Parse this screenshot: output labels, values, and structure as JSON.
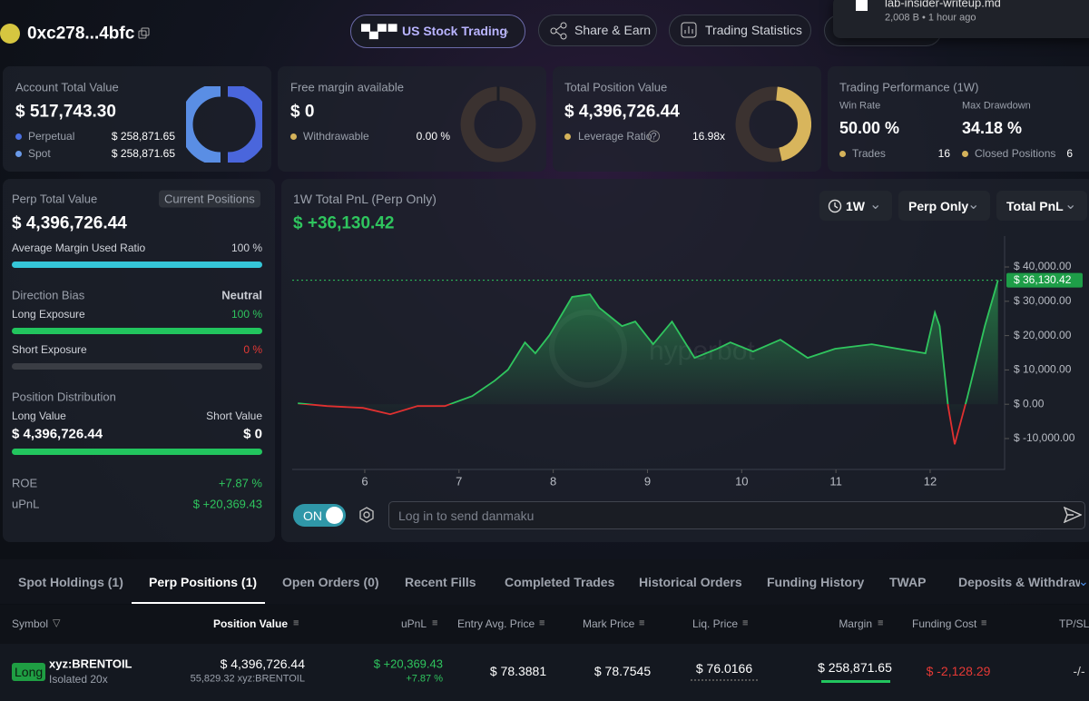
{
  "header": {
    "address": "0xc278...4bfc",
    "buttons": [
      "US Stock Trading",
      "Share & Earn",
      "Trading Statistics"
    ]
  },
  "notification": {
    "filename": "lab-insider-writeup.md",
    "meta": "2,008 B • 1 hour ago"
  },
  "cards": [
    {
      "title": "Account Total Value",
      "value": "$ 517,743.30",
      "rows": [
        {
          "label": "Perpetual",
          "value": "$ 258,871.65"
        },
        {
          "label": "Spot",
          "value": "$ 258,871.65"
        }
      ]
    },
    {
      "title": "Free margin available",
      "value": "$ 0",
      "rows": [
        {
          "label": "Withdrawable",
          "value": "0.00 %"
        }
      ]
    },
    {
      "title": "Total Position Value",
      "value": "$ 4,396,726.44",
      "rows": [
        {
          "label": "Leverage Ratio",
          "value": "16.98x"
        }
      ]
    },
    {
      "title": "Trading Performance (1W)",
      "stats": [
        {
          "label": "Win Rate",
          "value": "50.00 %"
        },
        {
          "label": "Max Drawdown",
          "value": "34.18 %"
        }
      ],
      "rows": [
        {
          "label": "Trades",
          "value": "16"
        },
        {
          "label": "Closed Positions",
          "value": "6"
        }
      ]
    }
  ],
  "perp": {
    "title": "Perp Total Value",
    "badge": "Current Positions",
    "value": "$ 4,396,726.44",
    "margin_label": "Average Margin Used Ratio",
    "margin_value": "100 %",
    "bias_label": "Direction Bias",
    "bias_value": "Neutral",
    "long_label": "Long Exposure",
    "long_value": "100 %",
    "short_label": "Short Exposure",
    "short_value": "0 %",
    "dist_label": "Position Distribution",
    "long_value_label": "Long Value",
    "short_value_label": "Short Value",
    "long_amount": "$ 4,396,726.44",
    "short_amount": "$ 0",
    "roe_label": "ROE",
    "roe": "+7.87 %",
    "upnl_label": "uPnL",
    "upnl": "$ +20,369.43"
  },
  "chart_data": {
    "type": "line",
    "title": "1W Total PnL (Perp Only)",
    "subtitle": "$ +36,130.42",
    "filters": [
      "1W",
      "Perp Only",
      "Total PnL"
    ],
    "watermark": "hyperbot",
    "x": [
      5.29,
      5.6,
      5.98,
      6.27,
      6.56,
      6.85,
      7.14,
      7.38,
      7.52,
      7.7,
      7.81,
      7.96,
      8.2,
      8.39,
      8.49,
      8.73,
      8.87,
      9.06,
      9.26,
      9.5,
      9.74,
      9.88,
      10.12,
      10.41,
      10.7,
      10.99,
      11.38,
      11.66,
      11.95,
      12.05,
      12.1,
      12.19,
      12.26,
      12.39,
      12.58,
      12.72
    ],
    "values": [
      265,
      -530,
      -1060,
      -2910,
      -530,
      -530,
      2380,
      6890,
      10070,
      18010,
      14830,
      20130,
      31260,
      32050,
      28080,
      22780,
      24110,
      17480,
      24110,
      13510,
      16160,
      18010,
      15360,
      18810,
      13510,
      16160,
      17480,
      16160,
      14830,
      26750,
      22780,
      -530,
      -11660,
      1590,
      22780,
      36130.42
    ],
    "color": "#2fc55e",
    "negative_color": "#e03030",
    "xlim": [
      5.23,
      12.79
    ],
    "xticks": [
      6,
      7,
      8,
      9,
      10,
      11,
      12
    ],
    "ylim": [
      -19000,
      49000
    ],
    "yticks": [
      {
        "value": 40000,
        "label": "$ 40,000.00"
      },
      {
        "value": 30000,
        "label": "$ 30,000.00"
      },
      {
        "value": 20000,
        "label": "$ 20,000.00"
      },
      {
        "value": 10000,
        "label": "$ 10,000.00"
      },
      {
        "value": 0,
        "label": "$ 0.00"
      },
      {
        "value": -10000,
        "label": "$ -10,000.00"
      }
    ],
    "current_value": 36130.42,
    "current_label": "$ 36,130.42"
  },
  "danmaku": {
    "toggle": "ON",
    "placeholder": "Log in to send danmaku"
  },
  "tabs": [
    "Spot Holdings (1)",
    "Perp Positions (1)",
    "Open Orders (0)",
    "Recent Fills",
    "Completed Trades",
    "Historical Orders",
    "Funding History",
    "TWAP",
    "Deposits & Withdrawals"
  ],
  "table": {
    "columns": [
      "Symbol",
      "Position Value",
      "uPnL",
      "Entry Avg. Price",
      "Mark Price",
      "Liq. Price",
      "Margin",
      "Funding Cost",
      "TP/SL"
    ],
    "rows": [
      {
        "side": "Long",
        "symbol": "xyz:BRENTOIL",
        "mode": "Isolated 20x",
        "position_value": "$ 4,396,726.44",
        "size": "55,829.32 xyz:BRENTOIL",
        "upnl": "$ +20,369.43",
        "upnl_pct": "+7.87 %",
        "entry": "$ 78.3881",
        "mark": "$ 78.7545",
        "liq": "$ 76.0166",
        "margin": "$ 258,871.65",
        "funding": "$ -2,128.29",
        "tpsl": "-/-"
      }
    ]
  }
}
